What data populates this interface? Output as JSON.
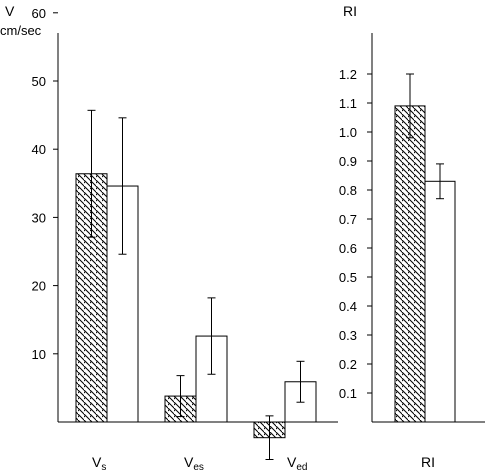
{
  "chart_data": [
    {
      "type": "bar",
      "ylabel": "V",
      "ylabel_unit": "cm/sec",
      "ylim": [
        -3,
        65
      ],
      "yticks": [
        "10",
        "20",
        "30",
        "40",
        "50",
        "60"
      ],
      "categories": [
        {
          "main": "V",
          "sub": "s"
        },
        {
          "main": "V",
          "sub": "es"
        },
        {
          "main": "V",
          "sub": "ed"
        }
      ],
      "series": [
        {
          "pattern": "hatched",
          "values": [
            36.4,
            3.8,
            -2.3
          ],
          "error": [
            9.3,
            3.0,
            3.2
          ]
        },
        {
          "pattern": "open",
          "values": [
            34.6,
            12.6,
            5.9
          ],
          "error": [
            10.0,
            5.6,
            3.0
          ]
        }
      ],
      "grid": false
    },
    {
      "type": "bar",
      "ylabel": "RI",
      "ylim": [
        0,
        1.3
      ],
      "yticks": [
        "0.1",
        "0.2",
        "0.3",
        "0.4",
        "0.5",
        "0.6",
        "0.7",
        "0.8",
        "0.9",
        "1.0",
        "1.1",
        "1.2"
      ],
      "categories": [
        "RI"
      ],
      "series": [
        {
          "pattern": "hatched",
          "values": [
            1.09
          ],
          "error": [
            0.11
          ]
        },
        {
          "pattern": "open",
          "values": [
            0.83
          ],
          "error": [
            0.06
          ]
        }
      ],
      "grid": false
    }
  ],
  "colors": {
    "ink": "#000000",
    "background": "#ffffff"
  }
}
